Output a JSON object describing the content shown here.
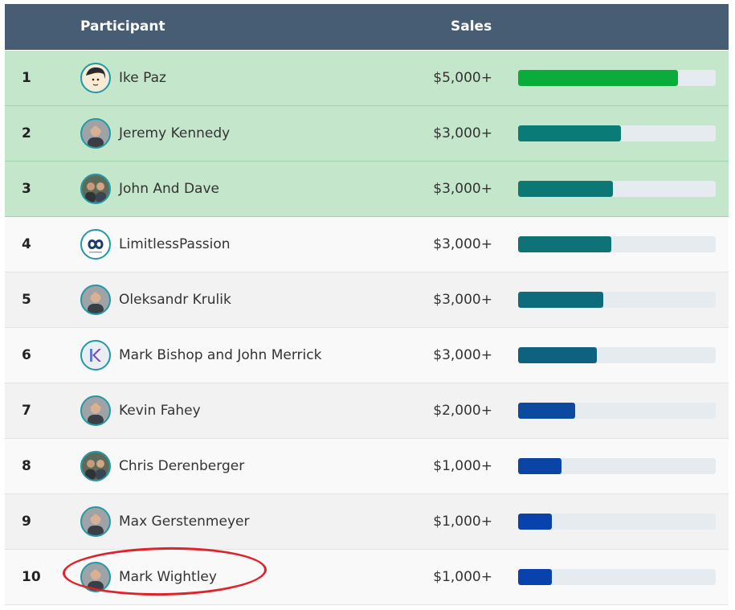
{
  "header": {
    "participant_label": "Participant",
    "sales_label": "Sales"
  },
  "rows": [
    {
      "rank": "1",
      "name": "Ike Paz",
      "sales": "$5,000+",
      "progress": 0.81,
      "bar_color": "#0aad3c",
      "bg": "#c4e6cb",
      "highlight": true,
      "avatar": "cartoon"
    },
    {
      "rank": "2",
      "name": "Jeremy Kennedy",
      "sales": "$3,000+",
      "progress": 0.52,
      "bar_color": "#0b7b77",
      "bg": "#c4e6cb",
      "highlight": true,
      "avatar": "photo"
    },
    {
      "rank": "3",
      "name": "John And Dave",
      "sales": "$3,000+",
      "progress": 0.48,
      "bar_color": "#0d7776",
      "bg": "#c4e6cb",
      "highlight": true,
      "avatar": "photo-group"
    },
    {
      "rank": "4",
      "name": "LimitlessPassion",
      "sales": "$3,000+",
      "progress": 0.47,
      "bar_color": "#0e7376",
      "bg": "#f9f9f9",
      "highlight": false,
      "avatar": "infinity-logo"
    },
    {
      "rank": "5",
      "name": "Oleksandr Krulik",
      "sales": "$3,000+",
      "progress": 0.43,
      "bar_color": "#0e6b7b",
      "bg": "#f2f2f2",
      "highlight": false,
      "avatar": "photo"
    },
    {
      "rank": "6",
      "name": "Mark Bishop and John Merrick",
      "sales": "$3,000+",
      "progress": 0.4,
      "bar_color": "#0f627f",
      "bg": "#f9f9f9",
      "highlight": false,
      "avatar": "ks-logo"
    },
    {
      "rank": "7",
      "name": "Kevin Fahey",
      "sales": "$2,000+",
      "progress": 0.29,
      "bar_color": "#0b4a9f",
      "bg": "#f2f2f2",
      "highlight": false,
      "avatar": "photo"
    },
    {
      "rank": "8",
      "name": "Chris Derenberger",
      "sales": "$1,000+",
      "progress": 0.22,
      "bar_color": "#0a45a6",
      "bg": "#f9f9f9",
      "highlight": false,
      "avatar": "photo-group"
    },
    {
      "rank": "9",
      "name": "Max Gerstenmeyer",
      "sales": "$1,000+",
      "progress": 0.17,
      "bar_color": "#0a42ad",
      "bg": "#f2f2f2",
      "highlight": false,
      "avatar": "photo"
    },
    {
      "rank": "10",
      "name": "Mark Wightley",
      "sales": "$1,000+",
      "progress": 0.17,
      "bar_color": "#0a42ad",
      "bg": "#f9f9f9",
      "highlight": false,
      "avatar": "photo",
      "annotated": true
    }
  ],
  "colors": {
    "header_bg": "#475d74",
    "bar_track": "#e6ebef",
    "avatar_ring": "#1f9aa6",
    "annotation": "#e0222b"
  }
}
